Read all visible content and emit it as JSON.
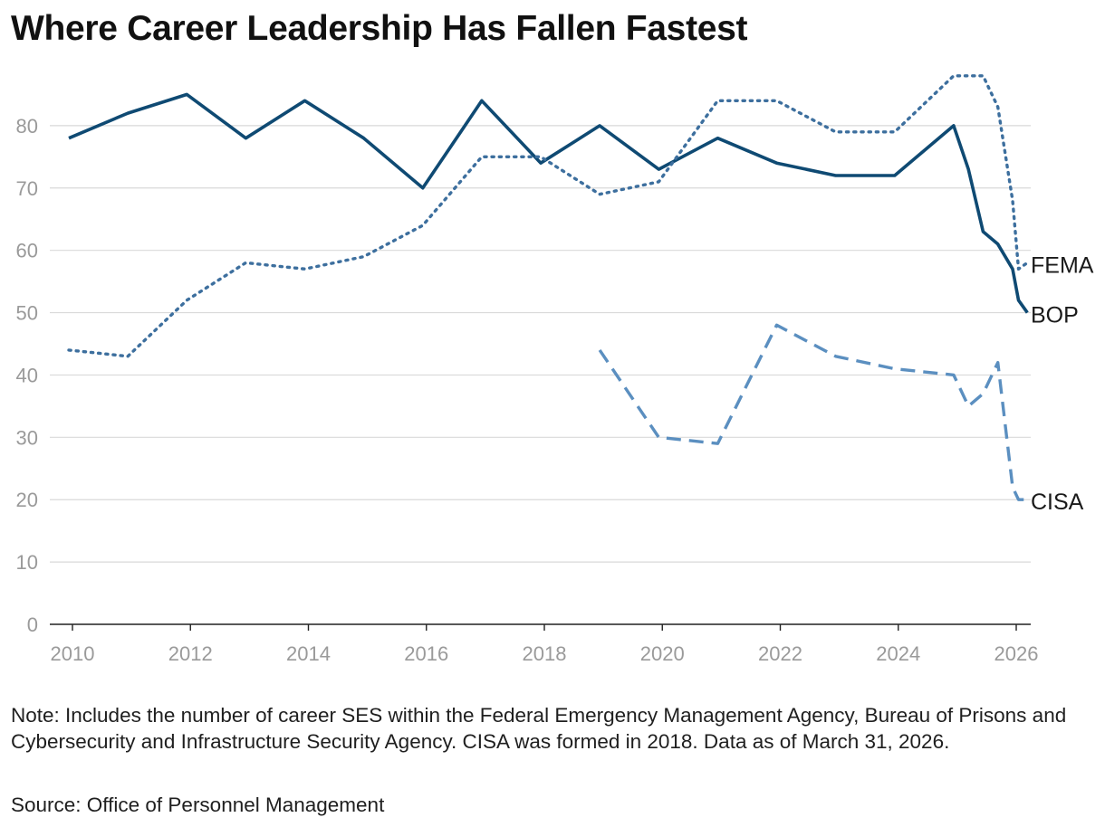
{
  "title": "Where Career Leadership Has Fallen Fastest",
  "note": "Note: Includes the number of career SES within the Federal Emergency Management Agency, Bureau of Prisons and Cybersecurity and Infrastructure Security Agency. CISA was formed in 2018. Data as of March 31, 2026.",
  "source": "Source: Office of Personnel Management",
  "chart_data": {
    "type": "line",
    "title": "Where Career Leadership Has Fallen Fastest",
    "xlabel": "",
    "ylabel": "",
    "xlim": [
      2010,
      2026.6
    ],
    "ylim": [
      0,
      90
    ],
    "x_ticks": [
      2010,
      2012,
      2014,
      2016,
      2018,
      2020,
      2022,
      2024,
      2026
    ],
    "y_ticks": [
      0,
      10,
      20,
      30,
      40,
      50,
      60,
      70,
      80
    ],
    "grid": "horizontal",
    "legend": "direct labels at right end of lines",
    "series": [
      {
        "name": "BOP",
        "color": "#0f4a73",
        "style": "solid",
        "x": [
          2010,
          2011,
          2012,
          2013,
          2014,
          2015,
          2016,
          2017,
          2018,
          2019,
          2020,
          2021,
          2022,
          2023,
          2024,
          2025,
          2025.25,
          2025.5,
          2025.75,
          2026,
          2026.1,
          2026.25
        ],
        "y": [
          78,
          82,
          85,
          78,
          84,
          78,
          70,
          84,
          74,
          80,
          73,
          78,
          74,
          72,
          72,
          80,
          73,
          63,
          61,
          57,
          52,
          50
        ]
      },
      {
        "name": "FEMA",
        "color": "#3d6f9e",
        "style": "dotted",
        "x": [
          2010,
          2011,
          2012,
          2013,
          2014,
          2015,
          2016,
          2017,
          2018,
          2019,
          2020,
          2021,
          2022,
          2023,
          2024,
          2025,
          2025.5,
          2025.75,
          2026,
          2026.1,
          2026.25
        ],
        "y": [
          44,
          43,
          52,
          58,
          57,
          59,
          64,
          75,
          75,
          69,
          71,
          84,
          84,
          79,
          79,
          88,
          88,
          83,
          68,
          57,
          58
        ]
      },
      {
        "name": "CISA",
        "color": "#5b8fc0",
        "style": "dashed",
        "x": [
          2019,
          2020,
          2021,
          2022,
          2023,
          2024,
          2025,
          2025.25,
          2025.5,
          2025.75,
          2026,
          2026.1,
          2026.25
        ],
        "y": [
          44,
          30,
          29,
          48,
          43,
          41,
          40,
          35,
          37,
          42,
          22,
          20,
          20
        ]
      }
    ]
  }
}
